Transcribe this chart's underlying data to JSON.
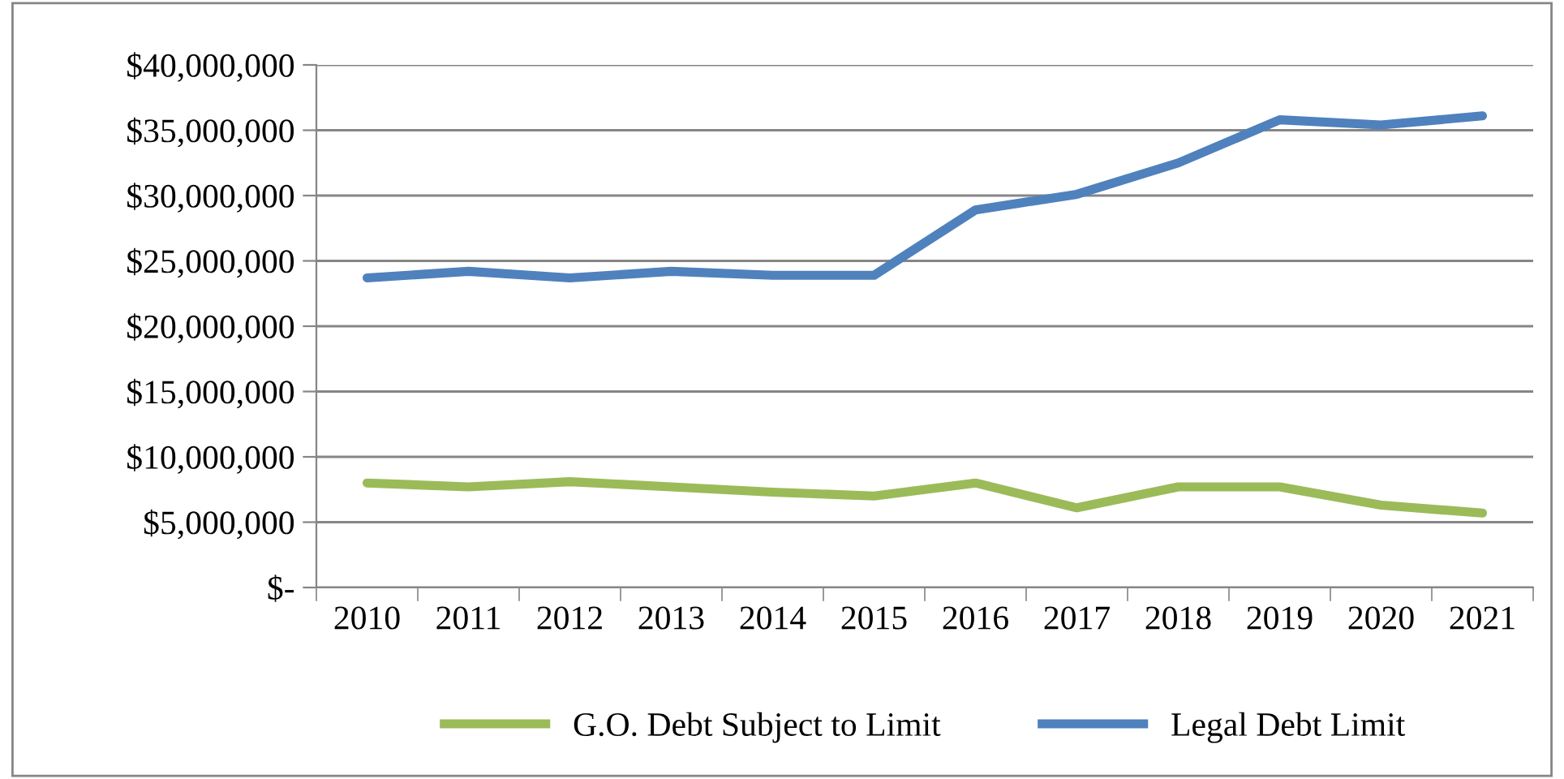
{
  "chart_data": {
    "type": "line",
    "categories": [
      "2010",
      "2011",
      "2012",
      "2013",
      "2014",
      "2015",
      "2016",
      "2017",
      "2018",
      "2019",
      "2020",
      "2021"
    ],
    "series": [
      {
        "name": "G.O. Debt Subject to Limit",
        "color": "#9bbb59",
        "values": [
          8000000,
          7700000,
          8100000,
          7700000,
          7300000,
          7000000,
          8000000,
          6100000,
          7700000,
          7700000,
          6300000,
          5700000
        ]
      },
      {
        "name": "Legal Debt Limit",
        "color": "#4f81bd",
        "values": [
          23700000,
          24200000,
          23700000,
          24200000,
          23900000,
          23900000,
          28900000,
          30100000,
          32500000,
          35800000,
          35400000,
          36100000
        ]
      }
    ],
    "ylim": [
      0,
      40000000
    ],
    "yticks": [
      {
        "value": 0,
        "label": "$-"
      },
      {
        "value": 5000000,
        "label": "$5,000,000"
      },
      {
        "value": 10000000,
        "label": "$10,000,000"
      },
      {
        "value": 15000000,
        "label": "$15,000,000"
      },
      {
        "value": 20000000,
        "label": "$20,000,000"
      },
      {
        "value": 25000000,
        "label": "$25,000,000"
      },
      {
        "value": 30000000,
        "label": "$30,000,000"
      },
      {
        "value": 35000000,
        "label": "$35,000,000"
      },
      {
        "value": 40000000,
        "label": "$40,000,000"
      }
    ],
    "grid": "y",
    "legend": "bottom",
    "marker": "none",
    "line_style": "solid"
  }
}
